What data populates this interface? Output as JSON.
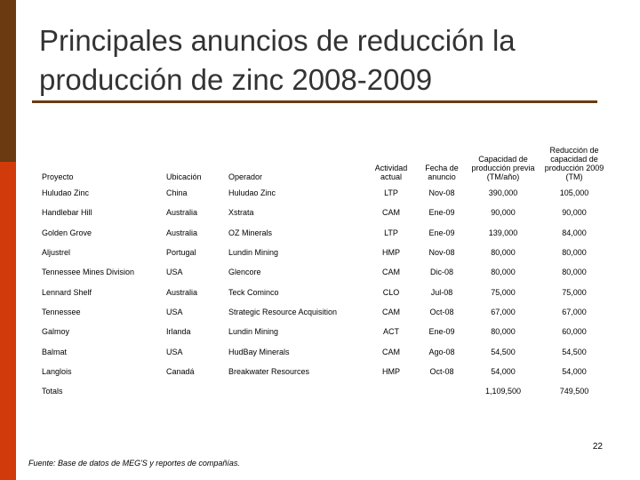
{
  "slide": {
    "title_line1": "Principales anuncios de reducción la",
    "title_line2": "producción de zinc 2008-2009",
    "page_number": "22",
    "source": "Fuente: Base de datos de MEG'S y reportes de compañías."
  },
  "colors": {
    "sidebar_top": "#6b3a10",
    "sidebar_bottom": "#d13a0a",
    "rule": "#6b3a10",
    "title": "#333333"
  },
  "table": {
    "headers": [
      "Proyecto",
      "Ubicación",
      "Operador",
      "Actividad actual",
      "Fecha de anuncio",
      "Capacidad de producción previa (TM/año)",
      "Reducción de capacidad de producción 2009 (TM)"
    ],
    "rows": [
      [
        "Huludao Zinc",
        "China",
        "Huludao Zinc",
        "LTP",
        "Nov-08",
        "390,000",
        "105,000"
      ],
      [
        "Handlebar Hill",
        "Australia",
        "Xstrata",
        "CAM",
        "Ene-09",
        "90,000",
        "90,000"
      ],
      [
        "Golden Grove",
        "Australia",
        "OZ Minerals",
        "LTP",
        "Ene-09",
        "139,000",
        "84,000"
      ],
      [
        "Aljustrel",
        "Portugal",
        "Lundin Mining",
        "HMP",
        "Nov-08",
        "80,000",
        "80,000"
      ],
      [
        "Tennessee Mines Division",
        "USA",
        "Glencore",
        "CAM",
        "Dic-08",
        "80,000",
        "80,000"
      ],
      [
        "Lennard Shelf",
        "Australia",
        "Teck Cominco",
        "CLO",
        "Jul-08",
        "75,000",
        "75,000"
      ],
      [
        "Tennessee",
        "USA",
        "Strategic Resource Acquisition",
        "CAM",
        "Oct-08",
        "67,000",
        "67,000"
      ],
      [
        "Galmoy",
        "Irlanda",
        "Lundin Mining",
        "ACT",
        "Ene-09",
        "80,000",
        "60,000"
      ],
      [
        "Balmat",
        "USA",
        "HudBay Minerals",
        "CAM",
        "Ago-08",
        "54,500",
        "54,500"
      ],
      [
        "Langlois",
        "Canadá",
        "Breakwater Resources",
        "HMP",
        "Oct-08",
        "54,000",
        "54,000"
      ]
    ],
    "totals": {
      "label": "Totals",
      "capacity": "1,109,500",
      "reduction": "749,500"
    }
  }
}
